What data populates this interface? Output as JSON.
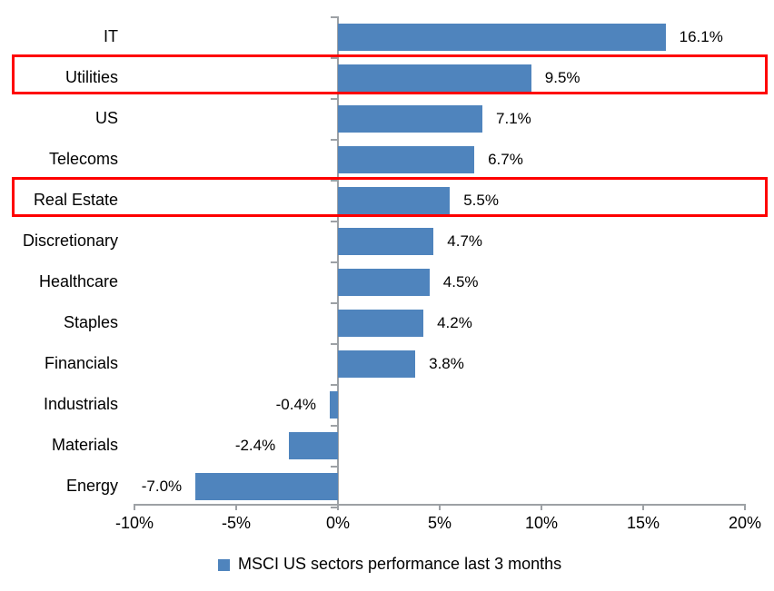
{
  "chart_data": {
    "type": "bar",
    "orientation": "horizontal",
    "title": "",
    "legend": "MSCI US sectors performance last 3 months",
    "legend_position": "bottom",
    "categories": [
      "IT",
      "Utilities",
      "US",
      "Telecoms",
      "Real Estate",
      "Discretionary",
      "Healthcare",
      "Staples",
      "Financials",
      "Industrials",
      "Materials",
      "Energy"
    ],
    "values": [
      16.1,
      9.5,
      7.1,
      6.7,
      5.5,
      4.7,
      4.5,
      4.2,
      3.8,
      -0.4,
      -2.4,
      -7.0
    ],
    "value_labels": [
      "16.1%",
      "9.5%",
      "7.1%",
      "6.7%",
      "5.5%",
      "4.7%",
      "4.5%",
      "4.2%",
      "3.8%",
      "-0.4%",
      "-2.4%",
      "-7.0%"
    ],
    "xlim": [
      -10,
      20
    ],
    "x_ticks": [
      {
        "label": "-10%",
        "value": -10
      },
      {
        "label": "-5%",
        "value": -5
      },
      {
        "label": "0%",
        "value": 0
      },
      {
        "label": "5%",
        "value": 5
      },
      {
        "label": "10%",
        "value": 10
      },
      {
        "label": "15%",
        "value": 15
      },
      {
        "label": "20%",
        "value": 20
      }
    ],
    "highlighted_categories": [
      "Utilities",
      "Real Estate"
    ],
    "grid": false,
    "colors": {
      "bar": "#4f84bd",
      "highlight_box": "#fe0000",
      "axis": "#9da1a5",
      "text": "#000000",
      "background": "#ffffff"
    }
  }
}
